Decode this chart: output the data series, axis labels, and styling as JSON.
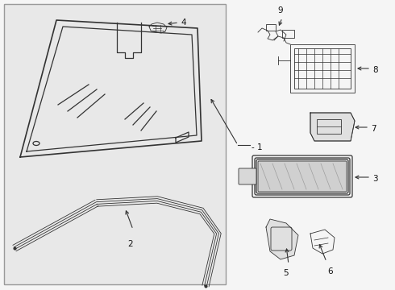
{
  "bg": "#f5f5f5",
  "panel_bg": "#e8e8e8",
  "panel_edge": "#999999",
  "lc": "#333333",
  "lc2": "#555555",
  "label_fs": 7.5
}
